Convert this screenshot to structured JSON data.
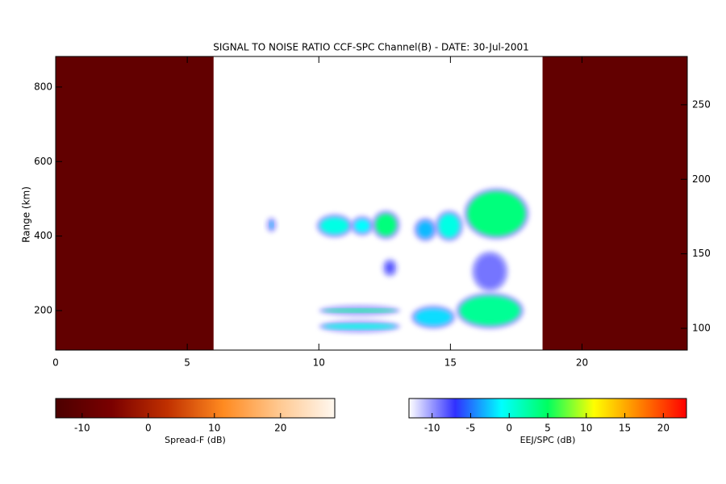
{
  "chart_data": {
    "type": "rti",
    "title": "SIGNAL TO NOISE RATIO CCF-SPC Channel(B) - DATE: 30-Jul-2001",
    "y_label": "Range (km)",
    "xlim": [
      0,
      24
    ],
    "xticks": [
      0,
      5,
      10,
      15,
      20
    ],
    "ylim": [
      94,
      882
    ],
    "yticks": [
      200,
      400,
      600,
      800
    ],
    "y2lim": [
      85.4,
      282.4
    ],
    "y2ticks": [
      100,
      150,
      200,
      250
    ],
    "spread_f_regions": [
      {
        "x": [
          0,
          6.0
        ],
        "value": -10
      },
      {
        "x": [
          18.5,
          24
        ],
        "value": -10
      }
    ],
    "echoes": [
      {
        "x": [
          8.0,
          8.4
        ],
        "y": [
          410,
          450
        ],
        "value": -3
      },
      {
        "x": [
          9.9,
          11.3
        ],
        "y": [
          395,
          460
        ],
        "value": 0
      },
      {
        "x": [
          11.2,
          12.1
        ],
        "y": [
          400,
          455
        ],
        "value": -1
      },
      {
        "x": [
          12.0,
          13.1
        ],
        "y": [
          390,
          470
        ],
        "value": 4
      },
      {
        "x": [
          13.6,
          14.5
        ],
        "y": [
          385,
          450
        ],
        "value": -3
      },
      {
        "x": [
          14.4,
          15.5
        ],
        "y": [
          385,
          470
        ],
        "value": 0
      },
      {
        "x": [
          15.5,
          18.0
        ],
        "y": [
          390,
          530
        ],
        "value": 4
      },
      {
        "x": [
          12.4,
          13.0
        ],
        "y": [
          290,
          340
        ],
        "value": -8
      },
      {
        "x": [
          15.8,
          17.2
        ],
        "y": [
          250,
          360
        ],
        "value": -9
      },
      {
        "x": [
          10.0,
          13.1
        ],
        "y": [
          185,
          215
        ],
        "value": 3
      },
      {
        "x": [
          10.0,
          13.1
        ],
        "y": [
          140,
          175
        ],
        "value": 0
      },
      {
        "x": [
          13.5,
          15.2
        ],
        "y": [
          150,
          215
        ],
        "value": -2
      },
      {
        "x": [
          15.2,
          17.8
        ],
        "y": [
          150,
          250
        ],
        "value": 3
      }
    ],
    "colorbars": [
      {
        "label": "Spread-F (dB)",
        "lim": [
          -14,
          28.2
        ],
        "ticks": [
          -10,
          0,
          10,
          20
        ],
        "colormap": [
          "#4c0000",
          "#7a0000",
          "#c03000",
          "#ff8a20",
          "#ffc890",
          "#fff8f0"
        ]
      },
      {
        "label": "EEJ/SPC (dB)",
        "lim": [
          -13,
          23
        ],
        "ticks": [
          -10,
          -5,
          0,
          5,
          10,
          15,
          20
        ],
        "colormap": [
          "#ffffff",
          "#3030ff",
          "#00ffff",
          "#00ff60",
          "#ffff00",
          "#ff8000",
          "#ff0000"
        ]
      }
    ]
  }
}
